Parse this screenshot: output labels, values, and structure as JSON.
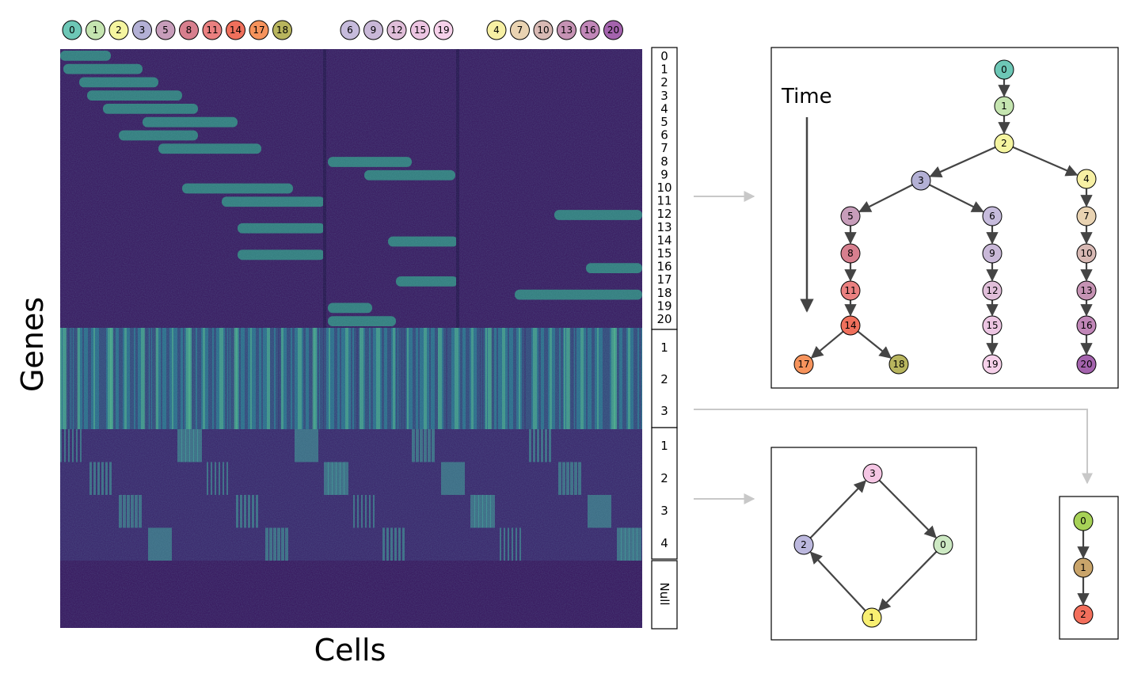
{
  "axis_labels": {
    "y": "Genes",
    "x": "Cells"
  },
  "time_label": "Time",
  "null_label": "Null",
  "legend_groups": [
    [
      "0",
      "1",
      "2",
      "3",
      "5",
      "8",
      "11",
      "14",
      "17",
      "18"
    ],
    [
      "6",
      "9",
      "12",
      "15",
      "19"
    ],
    [
      "4",
      "7",
      "10",
      "13",
      "16",
      "20"
    ]
  ],
  "program_labels": {
    "tree": [
      "0",
      "1",
      "2",
      "3",
      "4",
      "5",
      "6",
      "7",
      "8",
      "9",
      "10",
      "11",
      "12",
      "13",
      "14",
      "15",
      "16",
      "17",
      "18",
      "19",
      "20"
    ],
    "cycle4": [
      "1",
      "2",
      "3"
    ],
    "linear3": [
      "1",
      "2",
      "3",
      "4"
    ]
  },
  "tree_nodes": [
    {
      "id": "0",
      "color": "#6dc7b6"
    },
    {
      "id": "1",
      "color": "#c5e5b0"
    },
    {
      "id": "2",
      "color": "#f5f5a0"
    },
    {
      "id": "3",
      "color": "#b3b0d5"
    },
    {
      "id": "4",
      "color": "#f7f0a4"
    },
    {
      "id": "5",
      "color": "#c79dba"
    },
    {
      "id": "6",
      "color": "#c6bbdc"
    },
    {
      "id": "7",
      "color": "#e9d3b2"
    },
    {
      "id": "8",
      "color": "#d77f8e"
    },
    {
      "id": "9",
      "color": "#c9b8d8"
    },
    {
      "id": "10",
      "color": "#d8b9b4"
    },
    {
      "id": "11",
      "color": "#ea8080"
    },
    {
      "id": "12",
      "color": "#e0bed9"
    },
    {
      "id": "13",
      "color": "#c693b4"
    },
    {
      "id": "14",
      "color": "#f0705c"
    },
    {
      "id": "15",
      "color": "#ecc5e2"
    },
    {
      "id": "16",
      "color": "#c187b8"
    },
    {
      "id": "17",
      "color": "#f6935c"
    },
    {
      "id": "18",
      "color": "#b8b55e"
    },
    {
      "id": "19",
      "color": "#f6d1ea"
    },
    {
      "id": "20",
      "color": "#a463ad"
    }
  ],
  "tree_edges": [
    [
      "0",
      "1"
    ],
    [
      "1",
      "2"
    ],
    [
      "2",
      "3"
    ],
    [
      "2",
      "4"
    ],
    [
      "3",
      "5"
    ],
    [
      "3",
      "6"
    ],
    [
      "4",
      "7"
    ],
    [
      "5",
      "8"
    ],
    [
      "8",
      "11"
    ],
    [
      "11",
      "14"
    ],
    [
      "14",
      "17"
    ],
    [
      "14",
      "18"
    ],
    [
      "6",
      "9"
    ],
    [
      "9",
      "12"
    ],
    [
      "12",
      "15"
    ],
    [
      "15",
      "19"
    ],
    [
      "7",
      "10"
    ],
    [
      "10",
      "13"
    ],
    [
      "13",
      "16"
    ],
    [
      "16",
      "20"
    ]
  ],
  "cycle_nodes": [
    {
      "id": "3",
      "color": "#f5c6e4"
    },
    {
      "id": "0",
      "color": "#cde9c3"
    },
    {
      "id": "1",
      "color": "#f8ef72"
    },
    {
      "id": "2",
      "color": "#bcb8de"
    }
  ],
  "cycle_edges": [
    [
      "2",
      "3"
    ],
    [
      "3",
      "0"
    ],
    [
      "0",
      "1"
    ],
    [
      "1",
      "2"
    ]
  ],
  "linear_nodes": [
    {
      "id": "0",
      "color": "#a7d257"
    },
    {
      "id": "1",
      "color": "#c9a46a"
    },
    {
      "id": "2",
      "color": "#f36f5c"
    }
  ],
  "linear_edges": [
    [
      "0",
      "1"
    ],
    [
      "1",
      "2"
    ]
  ]
}
